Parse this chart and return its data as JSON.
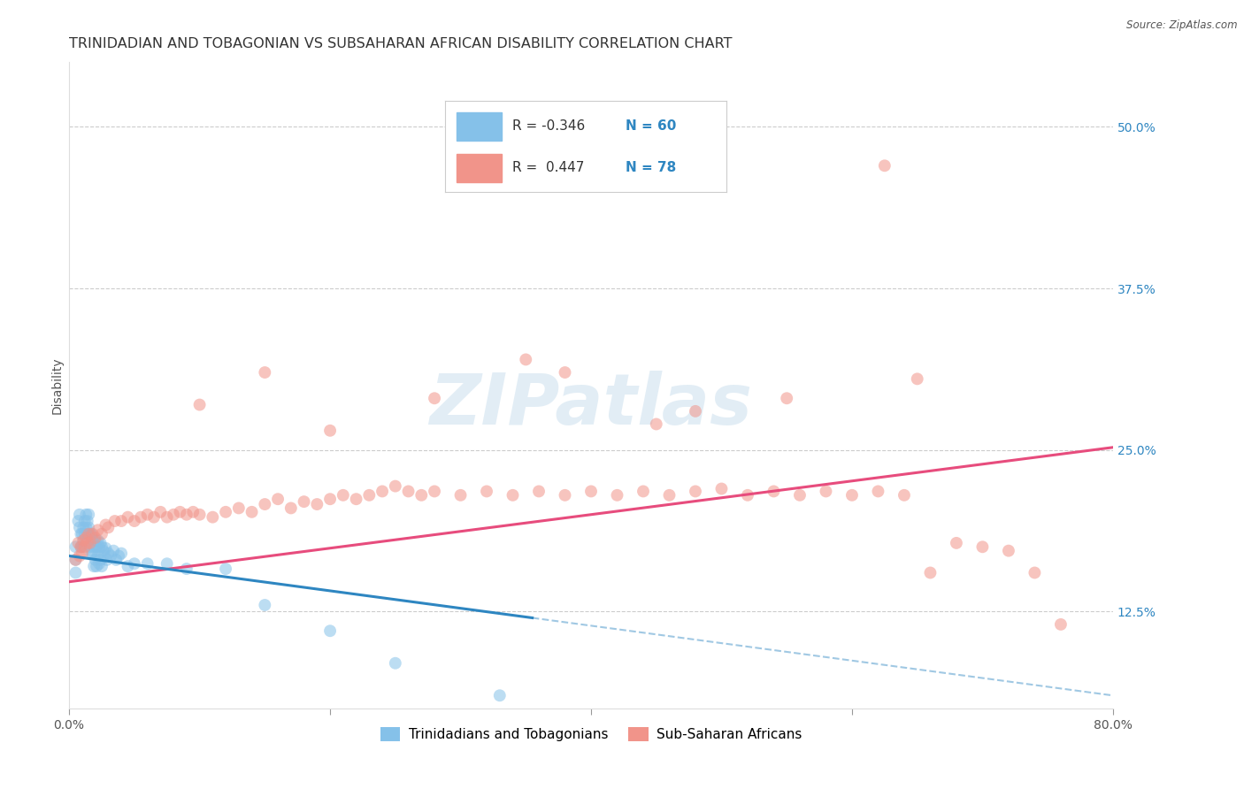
{
  "title": "TRINIDADIAN AND TOBAGONIAN VS SUBSAHARAN AFRICAN DISABILITY CORRELATION CHART",
  "source": "Source: ZipAtlas.com",
  "ylabel": "Disability",
  "xlim": [
    0.0,
    0.8
  ],
  "ylim": [
    0.05,
    0.55
  ],
  "yticks": [
    0.125,
    0.25,
    0.375,
    0.5
  ],
  "ytick_labels": [
    "12.5%",
    "25.0%",
    "37.5%",
    "50.0%"
  ],
  "group1_color": "#85C1E9",
  "group2_color": "#F1948A",
  "group1_line_color": "#2E86C1",
  "group2_line_color": "#E74C7D",
  "group1_label": "Trinidadians and Tobagonians",
  "group2_label": "Sub-Saharan Africans",
  "R1": -0.346,
  "N1": 60,
  "R2": 0.447,
  "N2": 78,
  "background_color": "#FFFFFF",
  "watermark_text": "ZIPatlas",
  "grid_color": "#CCCCCC",
  "title_fontsize": 11.5,
  "axis_label_fontsize": 10,
  "tick_fontsize": 10,
  "scatter_alpha": 0.55,
  "scatter_size": 100,
  "trend2_y_start": 0.148,
  "trend2_y_end": 0.252,
  "trend1_y_start": 0.168,
  "trend1_y_end": 0.06,
  "trend1_solid_x_end": 0.355,
  "blue_dot_x": [
    0.005,
    0.005,
    0.005,
    0.007,
    0.008,
    0.008,
    0.009,
    0.009,
    0.01,
    0.01,
    0.011,
    0.011,
    0.012,
    0.012,
    0.013,
    0.013,
    0.014,
    0.014,
    0.015,
    0.015,
    0.016,
    0.016,
    0.017,
    0.017,
    0.018,
    0.018,
    0.019,
    0.019,
    0.02,
    0.02,
    0.021,
    0.021,
    0.022,
    0.022,
    0.023,
    0.023,
    0.024,
    0.024,
    0.025,
    0.025,
    0.026,
    0.027,
    0.028,
    0.029,
    0.03,
    0.032,
    0.034,
    0.036,
    0.038,
    0.04,
    0.045,
    0.05,
    0.06,
    0.075,
    0.09,
    0.12,
    0.15,
    0.2,
    0.25,
    0.33
  ],
  "blue_dot_y": [
    0.175,
    0.165,
    0.155,
    0.195,
    0.2,
    0.19,
    0.185,
    0.175,
    0.185,
    0.175,
    0.19,
    0.18,
    0.195,
    0.185,
    0.2,
    0.19,
    0.195,
    0.185,
    0.2,
    0.19,
    0.185,
    0.175,
    0.185,
    0.17,
    0.18,
    0.17,
    0.175,
    0.16,
    0.18,
    0.165,
    0.175,
    0.16,
    0.18,
    0.168,
    0.175,
    0.162,
    0.178,
    0.165,
    0.175,
    0.16,
    0.172,
    0.168,
    0.174,
    0.165,
    0.17,
    0.168,
    0.172,
    0.165,
    0.168,
    0.17,
    0.16,
    0.162,
    0.162,
    0.162,
    0.158,
    0.158,
    0.13,
    0.11,
    0.085,
    0.06
  ],
  "pink_dot_x": [
    0.005,
    0.007,
    0.008,
    0.009,
    0.01,
    0.011,
    0.012,
    0.013,
    0.014,
    0.015,
    0.016,
    0.018,
    0.02,
    0.022,
    0.025,
    0.028,
    0.03,
    0.035,
    0.04,
    0.045,
    0.05,
    0.055,
    0.06,
    0.065,
    0.07,
    0.075,
    0.08,
    0.085,
    0.09,
    0.095,
    0.1,
    0.11,
    0.12,
    0.13,
    0.14,
    0.15,
    0.16,
    0.17,
    0.18,
    0.19,
    0.2,
    0.21,
    0.22,
    0.23,
    0.24,
    0.25,
    0.26,
    0.27,
    0.28,
    0.3,
    0.32,
    0.34,
    0.36,
    0.38,
    0.4,
    0.42,
    0.44,
    0.46,
    0.48,
    0.5,
    0.52,
    0.54,
    0.56,
    0.58,
    0.6,
    0.62,
    0.64,
    0.66,
    0.68,
    0.7,
    0.72,
    0.74,
    0.76,
    0.65,
    0.45,
    0.35,
    0.55
  ],
  "pink_dot_y": [
    0.165,
    0.178,
    0.168,
    0.175,
    0.17,
    0.18,
    0.175,
    0.182,
    0.178,
    0.185,
    0.178,
    0.185,
    0.182,
    0.188,
    0.185,
    0.192,
    0.19,
    0.195,
    0.195,
    0.198,
    0.195,
    0.198,
    0.2,
    0.198,
    0.202,
    0.198,
    0.2,
    0.202,
    0.2,
    0.202,
    0.2,
    0.198,
    0.202,
    0.205,
    0.202,
    0.208,
    0.212,
    0.205,
    0.21,
    0.208,
    0.212,
    0.215,
    0.212,
    0.215,
    0.218,
    0.222,
    0.218,
    0.215,
    0.218,
    0.215,
    0.218,
    0.215,
    0.218,
    0.215,
    0.218,
    0.215,
    0.218,
    0.215,
    0.218,
    0.22,
    0.215,
    0.218,
    0.215,
    0.218,
    0.215,
    0.218,
    0.215,
    0.155,
    0.178,
    0.175,
    0.172,
    0.155,
    0.115,
    0.305,
    0.27,
    0.32,
    0.29
  ],
  "pink_outlier_x": [
    0.625,
    0.15,
    0.28,
    0.38,
    0.1,
    0.2,
    0.48
  ],
  "pink_outlier_y": [
    0.47,
    0.31,
    0.29,
    0.31,
    0.285,
    0.265,
    0.28
  ]
}
